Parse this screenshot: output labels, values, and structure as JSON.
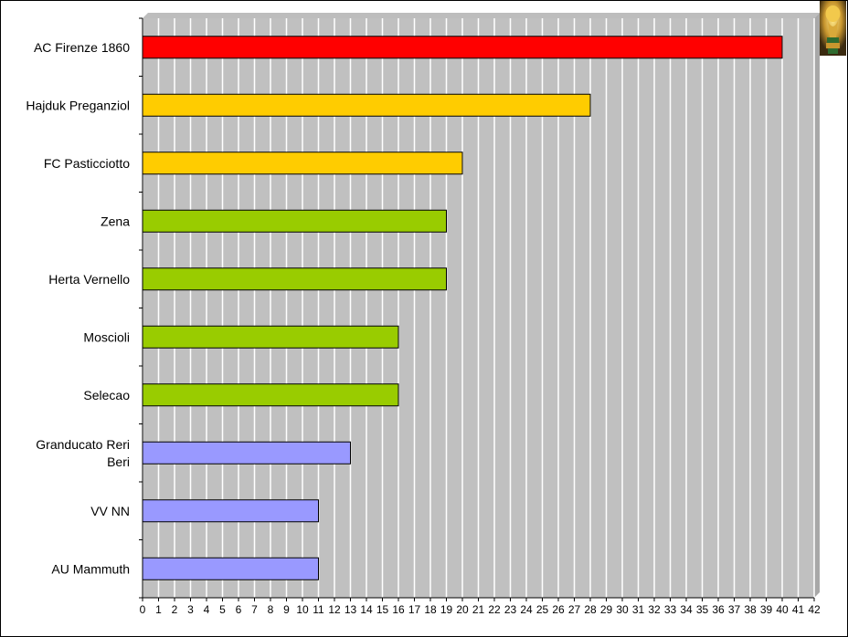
{
  "chart_data": {
    "type": "bar",
    "orientation": "horizontal",
    "categories": [
      "AC Firenze 1860",
      "Hajduk Preganziol",
      "FC Pasticciotto",
      "Zena",
      "Herta Vernello",
      "Moscioli",
      "Selecao",
      "Granducato Reri Beri",
      "VV NN",
      "AU Mammuth"
    ],
    "category_lines": [
      [
        "AC Firenze 1860"
      ],
      [
        "Hajduk Preganziol"
      ],
      [
        "FC Pasticciotto"
      ],
      [
        "Zena"
      ],
      [
        "Herta Vernello"
      ],
      [
        "Moscioli"
      ],
      [
        "Selecao"
      ],
      [
        "Granducato Reri",
        "Beri"
      ],
      [
        "VV NN"
      ],
      [
        "AU Mammuth"
      ]
    ],
    "values": [
      40,
      28,
      20,
      19,
      19,
      16,
      16,
      13,
      11,
      11
    ],
    "bar_colors": [
      "#ff0000",
      "#ffcc00",
      "#ffcc00",
      "#99cc00",
      "#99cc00",
      "#99cc00",
      "#99cc00",
      "#9999ff",
      "#9999ff",
      "#9999ff"
    ],
    "xlim": [
      0,
      42
    ],
    "x_ticks": [
      0,
      1,
      2,
      3,
      4,
      5,
      6,
      7,
      8,
      9,
      10,
      11,
      12,
      13,
      14,
      15,
      16,
      17,
      18,
      19,
      20,
      21,
      22,
      23,
      24,
      25,
      26,
      27,
      28,
      29,
      30,
      31,
      32,
      33,
      34,
      35,
      36,
      37,
      38,
      39,
      40,
      41,
      42
    ],
    "grid": "vertical",
    "plot_background": "#c0c0c0",
    "gridline_color": "#ffffff",
    "legend": "none",
    "title": "",
    "xlabel": "",
    "ylabel": ""
  },
  "decor": {
    "trophy_icon": "world-cup-trophy-icon"
  }
}
